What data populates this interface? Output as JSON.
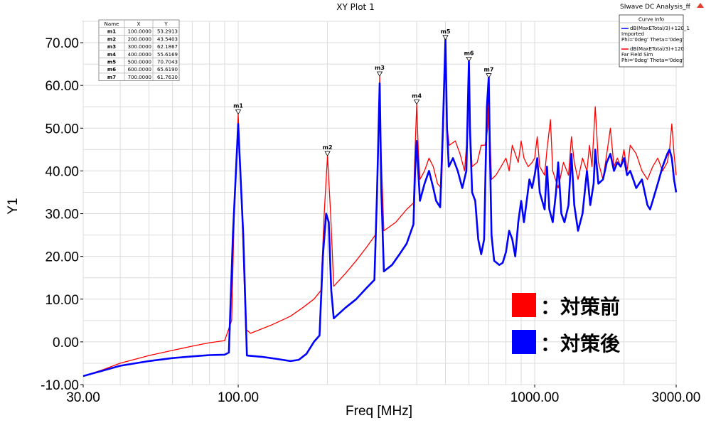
{
  "window": {
    "title": "XY Plot 1",
    "project": "SIwave DC Analysis_ff"
  },
  "curve_info": {
    "title": "Curve Info",
    "entries": [
      {
        "line1": "dB(MaxETotal/3)+120_1",
        "line2": "Imported",
        "line3": "Phi='0deg' Theta='0deg'",
        "color": "#0000ff"
      },
      {
        "line1": "dB(MaxETotal/3)+120",
        "line2": "Far Field Sim",
        "line3": "Phi='0deg' Theta='0deg'",
        "color": "#ff0000"
      }
    ]
  },
  "marker_table": {
    "headers": [
      "Name",
      "X",
      "Y"
    ],
    "rows": [
      [
        "m1",
        "100.0000",
        "53.2913"
      ],
      [
        "m2",
        "200.0000",
        "43.5403"
      ],
      [
        "m3",
        "300.0000",
        "62.1867"
      ],
      [
        "m4",
        "400.0000",
        "55.6169"
      ],
      [
        "m5",
        "500.0000",
        "70.7043"
      ],
      [
        "m6",
        "600.0000",
        "65.6190"
      ],
      [
        "m7",
        "700.0000",
        "61.7630"
      ]
    ]
  },
  "legend_overlay": [
    {
      "label": "：対策前",
      "color": "#ff0000"
    },
    {
      "label": "：対策後",
      "color": "#0000ff"
    }
  ],
  "chart_data": {
    "type": "line",
    "xlabel": "Freq [MHz]",
    "ylabel": "Y1",
    "xscale": "log",
    "xlim": [
      30,
      3000
    ],
    "ylim": [
      -10,
      75
    ],
    "grid": true,
    "x_tick_labels": [
      {
        "value": 30,
        "label": "30.00"
      },
      {
        "value": 100,
        "label": "100.00"
      },
      {
        "value": 1000,
        "label": "1000.00"
      },
      {
        "value": 3000,
        "label": "3000.00"
      }
    ],
    "y_tick_labels": [
      {
        "value": -10,
        "label": "-10.00"
      },
      {
        "value": 0,
        "label": "0.00"
      },
      {
        "value": 10,
        "label": "10.00"
      },
      {
        "value": 20,
        "label": "20.00"
      },
      {
        "value": 30,
        "label": "30.00"
      },
      {
        "value": 40,
        "label": "40.00"
      },
      {
        "value": 50,
        "label": "50.00"
      },
      {
        "value": 60,
        "label": "60.00"
      },
      {
        "value": 70,
        "label": "70.00"
      }
    ],
    "markers": [
      {
        "name": "m1",
        "x": 100,
        "y": 53.2913
      },
      {
        "name": "m2",
        "x": 200,
        "y": 43.5403
      },
      {
        "name": "m3",
        "x": 300,
        "y": 62.1867
      },
      {
        "name": "m4",
        "x": 400,
        "y": 55.6169
      },
      {
        "name": "m5",
        "x": 500,
        "y": 70.7043
      },
      {
        "name": "m6",
        "x": 600,
        "y": 65.619
      },
      {
        "name": "m7",
        "x": 700,
        "y": 61.763
      }
    ],
    "series": [
      {
        "name": "dB(MaxETotal/3)+120",
        "color": "#ff0000",
        "points": [
          [
            30,
            -8
          ],
          [
            35,
            -6.5
          ],
          [
            40,
            -5
          ],
          [
            50,
            -3.2
          ],
          [
            60,
            -2
          ],
          [
            70,
            -1
          ],
          [
            80,
            -0.2
          ],
          [
            90,
            0.3
          ],
          [
            95,
            5
          ],
          [
            97,
            30
          ],
          [
            100,
            53.3
          ],
          [
            103,
            30
          ],
          [
            106,
            3
          ],
          [
            110,
            2
          ],
          [
            130,
            4
          ],
          [
            150,
            6
          ],
          [
            165,
            8
          ],
          [
            180,
            10
          ],
          [
            190,
            12
          ],
          [
            195,
            30
          ],
          [
            200,
            43.5
          ],
          [
            205,
            30
          ],
          [
            210,
            13
          ],
          [
            230,
            16
          ],
          [
            250,
            19
          ],
          [
            270,
            22
          ],
          [
            290,
            25
          ],
          [
            297,
            45
          ],
          [
            300,
            62.2
          ],
          [
            303,
            45
          ],
          [
            310,
            26
          ],
          [
            340,
            28
          ],
          [
            370,
            31
          ],
          [
            390,
            32.5
          ],
          [
            395,
            45
          ],
          [
            400,
            55.6
          ],
          [
            405,
            45
          ],
          [
            410,
            38
          ],
          [
            425,
            40
          ],
          [
            440,
            43
          ],
          [
            455,
            41
          ],
          [
            470,
            37
          ],
          [
            485,
            36
          ],
          [
            492,
            50
          ],
          [
            500,
            70.7
          ],
          [
            507,
            50
          ],
          [
            515,
            46
          ],
          [
            540,
            47
          ],
          [
            560,
            44
          ],
          [
            580,
            40
          ],
          [
            595,
            50
          ],
          [
            600,
            65.6
          ],
          [
            605,
            50
          ],
          [
            615,
            41
          ],
          [
            640,
            42
          ],
          [
            660,
            46
          ],
          [
            680,
            46
          ],
          [
            695,
            50
          ],
          [
            700,
            61.8
          ],
          [
            705,
            50
          ],
          [
            715,
            38
          ],
          [
            740,
            39
          ],
          [
            770,
            41
          ],
          [
            800,
            43
          ],
          [
            820,
            40
          ],
          [
            840,
            46
          ],
          [
            860,
            44
          ],
          [
            880,
            42
          ],
          [
            900,
            47
          ],
          [
            920,
            43
          ],
          [
            950,
            41
          ],
          [
            980,
            42
          ],
          [
            1000,
            43
          ],
          [
            1020,
            48
          ],
          [
            1040,
            41
          ],
          [
            1080,
            39
          ],
          [
            1100,
            45
          ],
          [
            1130,
            52
          ],
          [
            1150,
            40
          ],
          [
            1200,
            36
          ],
          [
            1250,
            42
          ],
          [
            1300,
            39
          ],
          [
            1330,
            48
          ],
          [
            1360,
            42
          ],
          [
            1400,
            38
          ],
          [
            1450,
            43
          ],
          [
            1500,
            40
          ],
          [
            1530,
            46
          ],
          [
            1560,
            41
          ],
          [
            1600,
            55
          ],
          [
            1640,
            42
          ],
          [
            1700,
            38
          ],
          [
            1750,
            44
          ],
          [
            1800,
            50
          ],
          [
            1850,
            41
          ],
          [
            1900,
            43
          ],
          [
            1950,
            41
          ],
          [
            2000,
            45
          ],
          [
            2050,
            40
          ],
          [
            2100,
            46
          ],
          [
            2200,
            44
          ],
          [
            2300,
            40
          ],
          [
            2400,
            38
          ],
          [
            2500,
            41
          ],
          [
            2600,
            43
          ],
          [
            2700,
            40
          ],
          [
            2800,
            42
          ],
          [
            2850,
            45
          ],
          [
            2900,
            51
          ],
          [
            2950,
            44
          ],
          [
            3000,
            39
          ]
        ]
      },
      {
        "name": "dB(MaxETotal/3)+120_1",
        "color": "#0000ff",
        "points": [
          [
            30,
            -8
          ],
          [
            35,
            -6.7
          ],
          [
            40,
            -5.6
          ],
          [
            50,
            -4.5
          ],
          [
            60,
            -3.8
          ],
          [
            70,
            -3.4
          ],
          [
            80,
            -3.1
          ],
          [
            90,
            -3.0
          ],
          [
            93,
            -2.5
          ],
          [
            96,
            25
          ],
          [
            100,
            51
          ],
          [
            104,
            25
          ],
          [
            107,
            -3.2
          ],
          [
            120,
            -3.5
          ],
          [
            135,
            -4.0
          ],
          [
            150,
            -4.5
          ],
          [
            160,
            -4.2
          ],
          [
            170,
            -2.8
          ],
          [
            180,
            0
          ],
          [
            188,
            1.5
          ],
          [
            193,
            20
          ],
          [
            198,
            30
          ],
          [
            202,
            28
          ],
          [
            206,
            12
          ],
          [
            210,
            5.5
          ],
          [
            230,
            8
          ],
          [
            250,
            10
          ],
          [
            270,
            12.5
          ],
          [
            288,
            14.5
          ],
          [
            294,
            35
          ],
          [
            300,
            60.5
          ],
          [
            304,
            35
          ],
          [
            310,
            16.5
          ],
          [
            330,
            18
          ],
          [
            350,
            20.5
          ],
          [
            370,
            23
          ],
          [
            390,
            27.5
          ],
          [
            395,
            40
          ],
          [
            400,
            47
          ],
          [
            405,
            40
          ],
          [
            410,
            33
          ],
          [
            425,
            37
          ],
          [
            440,
            40
          ],
          [
            455,
            36
          ],
          [
            465,
            33
          ],
          [
            480,
            31.5
          ],
          [
            490,
            50
          ],
          [
            500,
            71
          ],
          [
            506,
            50
          ],
          [
            513,
            41
          ],
          [
            530,
            43
          ],
          [
            550,
            40
          ],
          [
            570,
            36
          ],
          [
            588,
            40
          ],
          [
            595,
            55
          ],
          [
            600,
            66
          ],
          [
            605,
            50
          ],
          [
            615,
            35
          ],
          [
            630,
            33
          ],
          [
            645,
            24
          ],
          [
            660,
            20.5
          ],
          [
            675,
            24
          ],
          [
            690,
            55
          ],
          [
            700,
            62
          ],
          [
            706,
            45
          ],
          [
            715,
            25
          ],
          [
            730,
            19
          ],
          [
            760,
            18
          ],
          [
            780,
            18.5
          ],
          [
            800,
            21
          ],
          [
            820,
            26
          ],
          [
            840,
            24
          ],
          [
            860,
            20
          ],
          [
            880,
            28
          ],
          [
            900,
            33
          ],
          [
            920,
            28
          ],
          [
            940,
            33
          ],
          [
            960,
            38
          ],
          [
            980,
            36
          ],
          [
            1000,
            39
          ],
          [
            1020,
            43
          ],
          [
            1040,
            35
          ],
          [
            1080,
            31
          ],
          [
            1100,
            41
          ],
          [
            1120,
            31
          ],
          [
            1150,
            28
          ],
          [
            1180,
            35
          ],
          [
            1200,
            42
          ],
          [
            1230,
            30
          ],
          [
            1260,
            28
          ],
          [
            1300,
            32
          ],
          [
            1330,
            44
          ],
          [
            1360,
            32
          ],
          [
            1400,
            26
          ],
          [
            1450,
            30
          ],
          [
            1500,
            40
          ],
          [
            1540,
            32
          ],
          [
            1580,
            37
          ],
          [
            1600,
            45
          ],
          [
            1640,
            37
          ],
          [
            1700,
            38
          ],
          [
            1750,
            42
          ],
          [
            1800,
            44
          ],
          [
            1850,
            40
          ],
          [
            1900,
            42
          ],
          [
            1950,
            41
          ],
          [
            2000,
            43
          ],
          [
            2050,
            39
          ],
          [
            2100,
            40
          ],
          [
            2150,
            38
          ],
          [
            2200,
            36
          ],
          [
            2300,
            38
          ],
          [
            2400,
            32
          ],
          [
            2450,
            31
          ],
          [
            2500,
            33
          ],
          [
            2600,
            37
          ],
          [
            2700,
            41
          ],
          [
            2800,
            44
          ],
          [
            2850,
            45
          ],
          [
            2900,
            43
          ],
          [
            2950,
            38
          ],
          [
            3000,
            35
          ]
        ]
      }
    ]
  }
}
